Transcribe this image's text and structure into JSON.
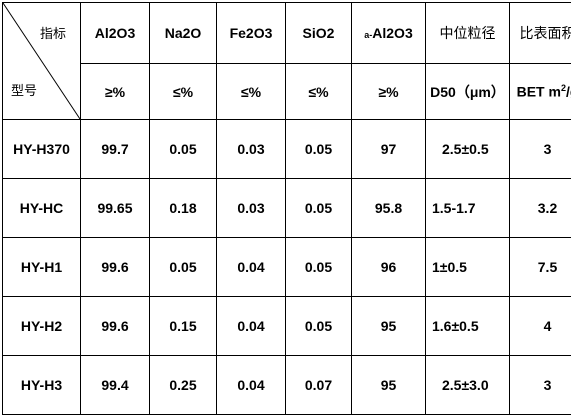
{
  "header": {
    "corner_top": "指标",
    "corner_bottom": "型号",
    "columns": [
      {
        "name": "Al2O3",
        "unit": "≥%"
      },
      {
        "name": "Na2O",
        "unit": "≤%"
      },
      {
        "name": "Fe2O3",
        "unit": "≤%"
      },
      {
        "name": "SiO2",
        "unit": "≤%"
      },
      {
        "name_prefix": "a-",
        "name": "Al2O3",
        "unit": "≥%"
      },
      {
        "name": "中位粒径",
        "unit": "D50（μm）"
      },
      {
        "name": "比表面积",
        "unit_main": "BET m",
        "unit_sup": "2",
        "unit_tail": "/g"
      }
    ]
  },
  "rows": [
    {
      "model": "HY-H370",
      "al2o3": "99.7",
      "na2o": "0.05",
      "fe2o3": "0.03",
      "sio2": "0.05",
      "alpha_al2o3": "97",
      "d50": "2.5±0.5",
      "bet": "3"
    },
    {
      "model": "HY-HC",
      "al2o3": "99.65",
      "na2o": "0.18",
      "fe2o3": "0.03",
      "sio2": "0.05",
      "alpha_al2o3": "95.8",
      "d50": "1.5-1.7",
      "bet": "3.2"
    },
    {
      "model": "HY-H1",
      "al2o3": "99.6",
      "na2o": "0.05",
      "fe2o3": "0.04",
      "sio2": "0.05",
      "alpha_al2o3": "96",
      "d50": "1±0.5",
      "bet": "7.5"
    },
    {
      "model": "HY-H2",
      "al2o3": "99.6",
      "na2o": "0.15",
      "fe2o3": "0.04",
      "sio2": "0.05",
      "alpha_al2o3": "95",
      "d50": "1.6±0.5",
      "bet": "4"
    },
    {
      "model": "HY-H3",
      "al2o3": "99.4",
      "na2o": "0.25",
      "fe2o3": "0.04",
      "sio2": "0.07",
      "alpha_al2o3": "95",
      "d50": "2.5±3.0",
      "bet": "3"
    }
  ]
}
